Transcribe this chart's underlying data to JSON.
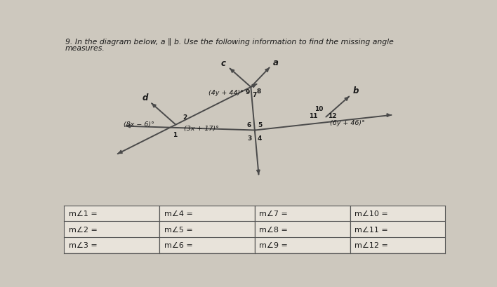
{
  "title_line1": "9. In the diagram below, a ∥ b. Use the following information to find the missing angle",
  "title_line2": "measures.",
  "bg_color": "#cdc8be",
  "line_color": "#4a4a4a",
  "text_color": "#1a1a1a",
  "angle_label_left": "(8x − 6)°",
  "angle_label_mid_top": "(4y + 44)°",
  "angle_label_mid_bot": "(3x + 17)°",
  "angle_label_right": "(6y + 46)°",
  "table_entries": [
    [
      "m∠1 =",
      "m∠4 =",
      "m∠7 =",
      "m∠10 ="
    ],
    [
      "m∠2 =",
      "m∠5 =",
      "m∠8 =",
      "m∠11 ="
    ],
    [
      "m∠3 =",
      "m∠6 =",
      "m∠9 =",
      "m∠12 ="
    ]
  ],
  "A": [
    0.295,
    0.59
  ],
  "B": [
    0.49,
    0.76
  ],
  "C": [
    0.5,
    0.565
  ],
  "D": [
    0.685,
    0.625
  ]
}
